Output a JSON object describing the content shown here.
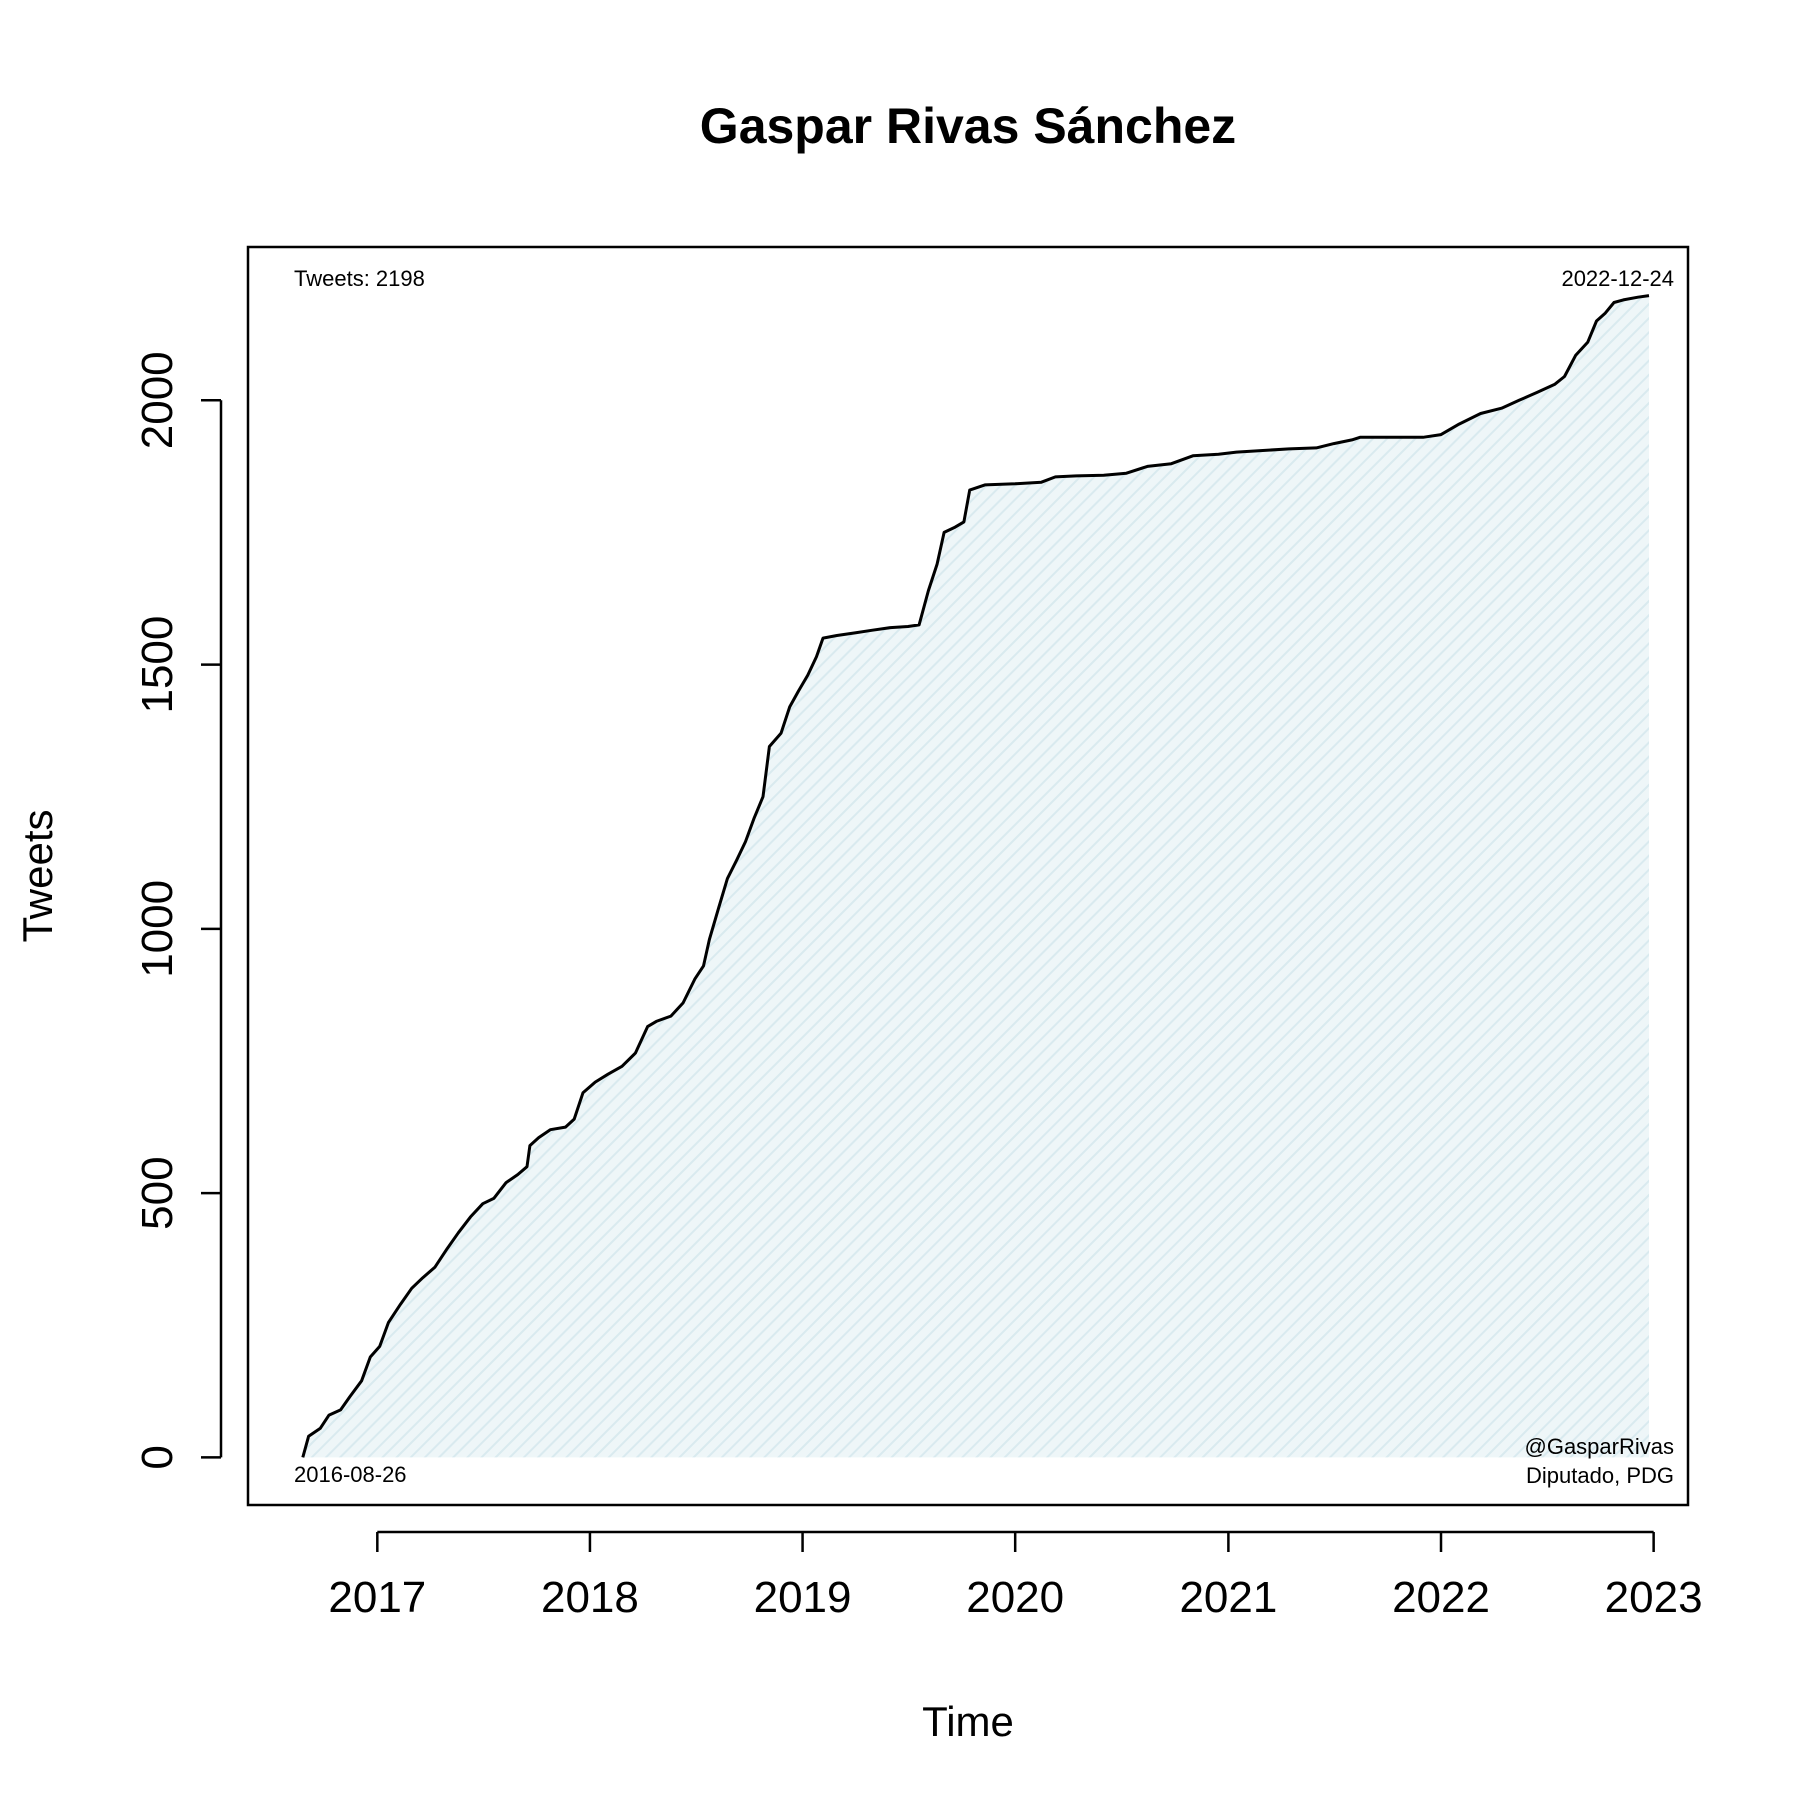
{
  "chart_data": {
    "type": "area",
    "title": "Gaspar Rivas Sánchez",
    "xlabel": "Time",
    "ylabel": "Tweets",
    "x_ticks": [
      "2017",
      "2018",
      "2019",
      "2020",
      "2021",
      "2022",
      "2023"
    ],
    "y_ticks": [
      "0",
      "500",
      "1000",
      "1500",
      "2000"
    ],
    "xlim": [
      "2016-05-24",
      "2023-03-01"
    ],
    "ylim": [
      -90,
      2290
    ],
    "grid": false,
    "annotations": {
      "count": "Tweets: 2198",
      "start_date": "2016-08-26",
      "end_date": "2022-12-24",
      "handle": "@GasparRivas",
      "role": "Diputado, PDG"
    },
    "colors": {
      "line": "#000000",
      "fill": "#e9f3f6"
    },
    "series": [
      {
        "points": [
          [
            "2016-08-26",
            0
          ],
          [
            "2016-09-05",
            40
          ],
          [
            "2016-09-25",
            55
          ],
          [
            "2016-10-10",
            80
          ],
          [
            "2016-10-30",
            90
          ],
          [
            "2016-11-15",
            115
          ],
          [
            "2016-12-05",
            145
          ],
          [
            "2016-12-20",
            190
          ],
          [
            "2017-01-05",
            210
          ],
          [
            "2017-01-20",
            255
          ],
          [
            "2017-02-10",
            290
          ],
          [
            "2017-03-01",
            320
          ],
          [
            "2017-03-20",
            340
          ],
          [
            "2017-04-10",
            360
          ],
          [
            "2017-05-01",
            395
          ],
          [
            "2017-05-20",
            425
          ],
          [
            "2017-06-10",
            455
          ],
          [
            "2017-07-01",
            480
          ],
          [
            "2017-07-20",
            490
          ],
          [
            "2017-08-10",
            520
          ],
          [
            "2017-08-30",
            535
          ],
          [
            "2017-09-15",
            550
          ],
          [
            "2017-09-20",
            590
          ],
          [
            "2017-10-05",
            605
          ],
          [
            "2017-10-25",
            620
          ],
          [
            "2017-11-20",
            625
          ],
          [
            "2017-12-05",
            640
          ],
          [
            "2017-12-20",
            690
          ],
          [
            "2018-01-10",
            710
          ],
          [
            "2018-02-01",
            725
          ],
          [
            "2018-02-25",
            740
          ],
          [
            "2018-03-20",
            765
          ],
          [
            "2018-04-10",
            815
          ],
          [
            "2018-04-25",
            825
          ],
          [
            "2018-05-20",
            835
          ],
          [
            "2018-06-10",
            860
          ],
          [
            "2018-06-30",
            905
          ],
          [
            "2018-07-15",
            930
          ],
          [
            "2018-07-25",
            980
          ],
          [
            "2018-08-10",
            1040
          ],
          [
            "2018-08-25",
            1095
          ],
          [
            "2018-09-10",
            1130
          ],
          [
            "2018-09-25",
            1165
          ],
          [
            "2018-10-10",
            1210
          ],
          [
            "2018-10-25",
            1250
          ],
          [
            "2018-11-05",
            1345
          ],
          [
            "2018-11-25",
            1370
          ],
          [
            "2018-12-10",
            1420
          ],
          [
            "2018-12-25",
            1450
          ],
          [
            "2019-01-10",
            1480
          ],
          [
            "2019-01-25",
            1515
          ],
          [
            "2019-02-05",
            1550
          ],
          [
            "2019-03-01",
            1555
          ],
          [
            "2019-04-01",
            1560
          ],
          [
            "2019-05-01",
            1565
          ],
          [
            "2019-06-01",
            1570
          ],
          [
            "2019-07-01",
            1572
          ],
          [
            "2019-07-20",
            1575
          ],
          [
            "2019-08-05",
            1640
          ],
          [
            "2019-08-20",
            1690
          ],
          [
            "2019-09-01",
            1750
          ],
          [
            "2019-09-20",
            1760
          ],
          [
            "2019-10-05",
            1770
          ],
          [
            "2019-10-15",
            1830
          ],
          [
            "2019-11-10",
            1840
          ],
          [
            "2020-01-01",
            1842
          ],
          [
            "2020-02-15",
            1845
          ],
          [
            "2020-03-10",
            1855
          ],
          [
            "2020-04-15",
            1857
          ],
          [
            "2020-06-01",
            1858
          ],
          [
            "2020-07-10",
            1862
          ],
          [
            "2020-08-15",
            1875
          ],
          [
            "2020-09-25",
            1880
          ],
          [
            "2020-11-01",
            1895
          ],
          [
            "2020-12-15",
            1898
          ],
          [
            "2021-01-15",
            1902
          ],
          [
            "2021-03-01",
            1905
          ],
          [
            "2021-04-15",
            1908
          ],
          [
            "2021-06-01",
            1910
          ],
          [
            "2021-07-01",
            1918
          ],
          [
            "2021-08-01",
            1925
          ],
          [
            "2021-08-15",
            1930
          ],
          [
            "2021-10-01",
            1930
          ],
          [
            "2021-12-01",
            1930
          ],
          [
            "2022-01-01",
            1935
          ],
          [
            "2022-02-01",
            1955
          ],
          [
            "2022-03-10",
            1975
          ],
          [
            "2022-04-15",
            1985
          ],
          [
            "2022-05-15",
            2000
          ],
          [
            "2022-06-15",
            2015
          ],
          [
            "2022-07-15",
            2030
          ],
          [
            "2022-08-01",
            2045
          ],
          [
            "2022-08-20",
            2085
          ],
          [
            "2022-09-10",
            2110
          ],
          [
            "2022-09-25",
            2150
          ],
          [
            "2022-10-10",
            2165
          ],
          [
            "2022-10-25",
            2185
          ],
          [
            "2022-11-10",
            2190
          ],
          [
            "2022-12-05",
            2195
          ],
          [
            "2022-12-24",
            2198
          ]
        ]
      }
    ]
  }
}
